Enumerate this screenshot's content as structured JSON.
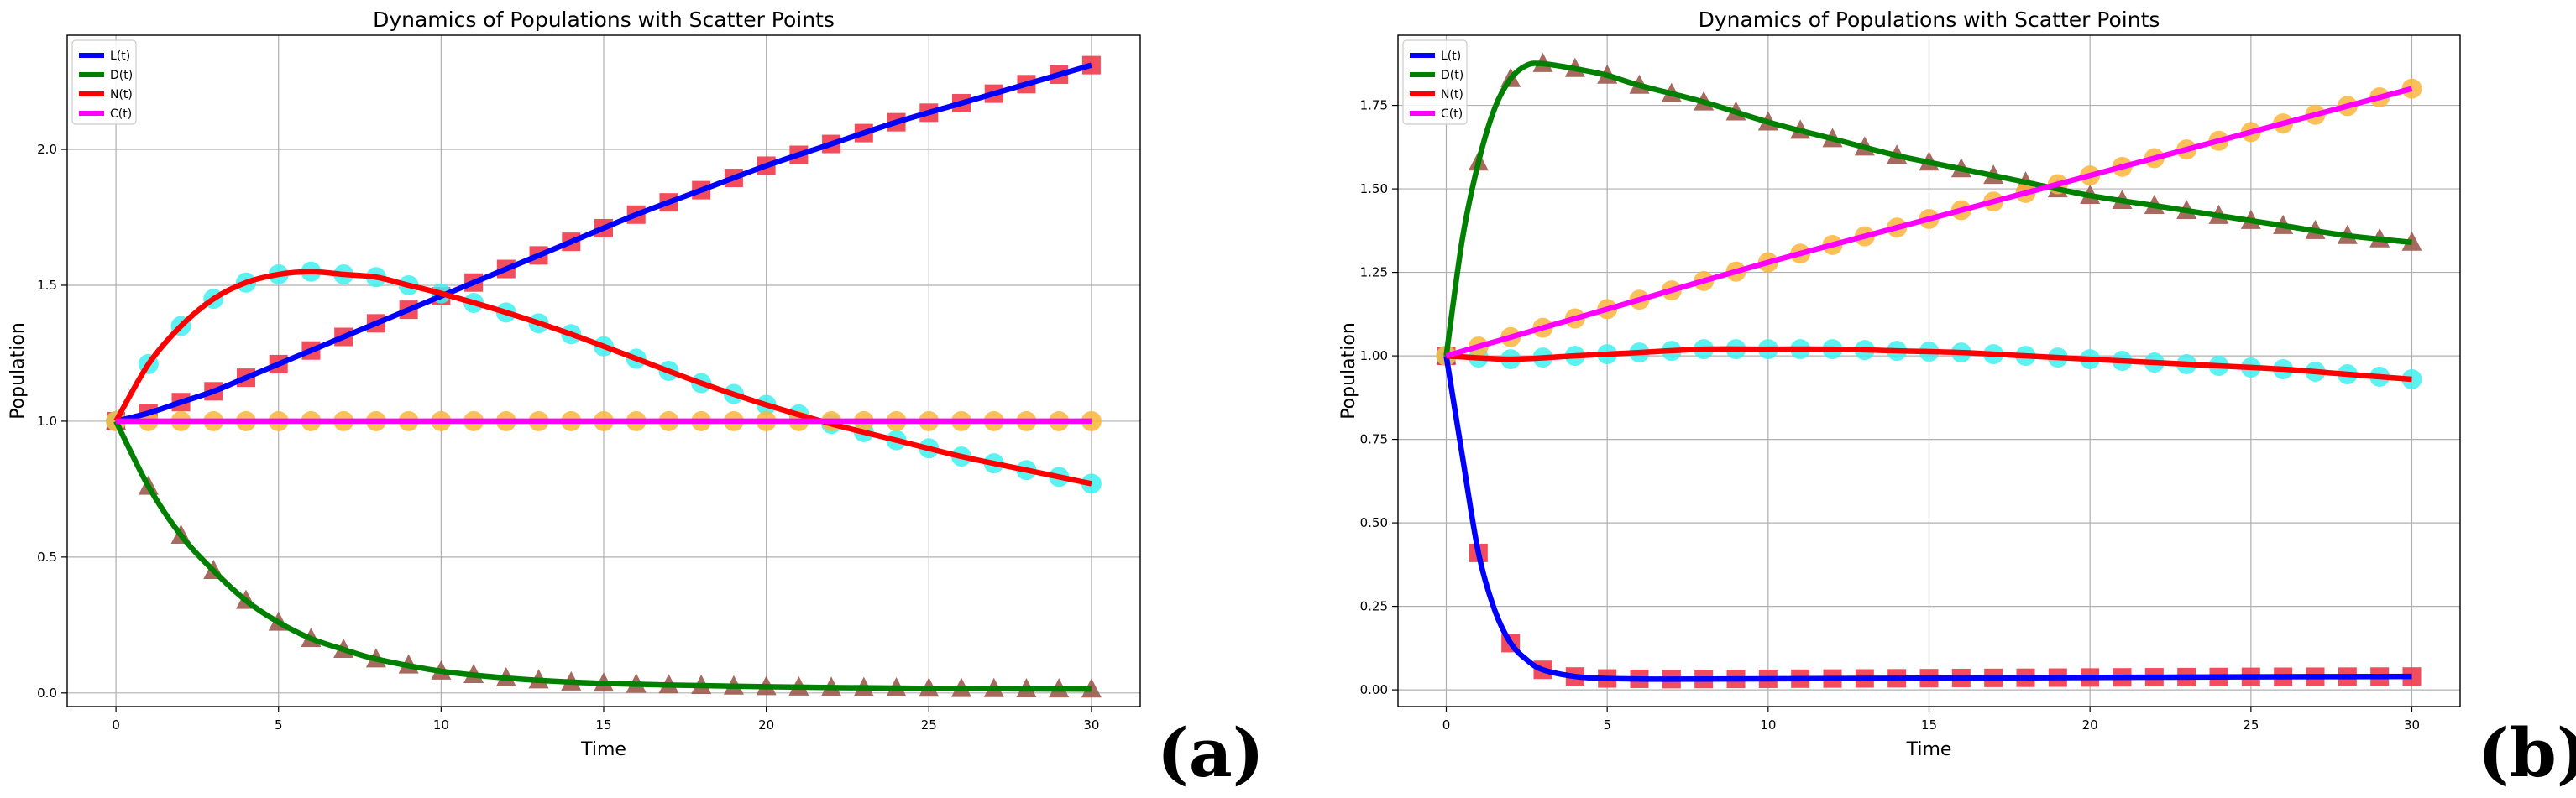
{
  "chart_data": [
    {
      "type": "line",
      "panel_label": "(a)",
      "title": "Dynamics of Populations with Scatter Points",
      "xlabel": "Time",
      "ylabel": "Population",
      "xlim": [
        -1.5,
        31.5
      ],
      "ylim": [
        -0.05,
        2.42
      ],
      "xticks": [
        0,
        5,
        10,
        15,
        20,
        25,
        30
      ],
      "yticks": [
        0.0,
        0.5,
        1.0,
        1.5,
        2.0
      ],
      "ytick_labels": [
        "0.0",
        "0.5",
        "1.0",
        "1.5",
        "2.0"
      ],
      "grid": true,
      "legend_position": "top-left",
      "series": [
        {
          "name": "L(t)",
          "color": "#0000ff",
          "marker": "square",
          "marker_color": "#f03a4a",
          "x": [
            0,
            1,
            2,
            3,
            4,
            5,
            6,
            7,
            8,
            9,
            10,
            12,
            14,
            16,
            18,
            20,
            22,
            24,
            26,
            28,
            30
          ],
          "values": [
            1.0,
            1.03,
            1.07,
            1.11,
            1.16,
            1.21,
            1.26,
            1.31,
            1.36,
            1.41,
            1.46,
            1.56,
            1.66,
            1.76,
            1.85,
            1.94,
            2.02,
            2.1,
            2.17,
            2.24,
            2.31
          ]
        },
        {
          "name": "D(t)",
          "color": "#008000",
          "marker": "triangle",
          "marker_color": "#9c5a4e",
          "x": [
            0,
            1,
            2,
            3,
            4,
            5,
            6,
            7,
            8,
            10,
            12,
            14,
            16,
            18,
            20,
            22,
            24,
            26,
            28,
            30
          ],
          "values": [
            1.0,
            0.76,
            0.58,
            0.45,
            0.34,
            0.26,
            0.2,
            0.16,
            0.125,
            0.08,
            0.055,
            0.04,
            0.032,
            0.027,
            0.023,
            0.02,
            0.018,
            0.016,
            0.015,
            0.014
          ]
        },
        {
          "name": "N(t)",
          "color": "#ff0000",
          "marker": "circle",
          "marker_color": "#3ff0f0",
          "x": [
            0,
            1,
            2,
            3,
            4,
            5,
            6,
            7,
            8,
            9,
            10,
            12,
            14,
            16,
            18,
            20,
            22,
            24,
            26,
            28,
            30
          ],
          "values": [
            1.0,
            1.21,
            1.35,
            1.45,
            1.51,
            1.54,
            1.55,
            1.54,
            1.53,
            1.5,
            1.47,
            1.4,
            1.32,
            1.23,
            1.14,
            1.06,
            0.99,
            0.93,
            0.87,
            0.82,
            0.77
          ]
        },
        {
          "name": "C(t)",
          "color": "#ff00ff",
          "marker": "circle",
          "marker_color": "#fbb53c",
          "x": [
            0,
            5,
            10,
            15,
            20,
            25,
            30
          ],
          "values": [
            1.0,
            1.0,
            1.0,
            1.0,
            1.0,
            1.0,
            1.0
          ]
        }
      ]
    },
    {
      "type": "line",
      "panel_label": "(b)",
      "title": "Dynamics of Populations with Scatter Points",
      "xlabel": "Time",
      "ylabel": "Population",
      "xlim": [
        -1.5,
        31.5
      ],
      "ylim": [
        -0.05,
        1.96
      ],
      "xticks": [
        0,
        5,
        10,
        15,
        20,
        25,
        30
      ],
      "yticks": [
        0.0,
        0.25,
        0.5,
        0.75,
        1.0,
        1.25,
        1.5,
        1.75
      ],
      "ytick_labels": [
        "0.00",
        "0.25",
        "0.50",
        "0.75",
        "1.00",
        "1.25",
        "1.50",
        "1.75"
      ],
      "grid": true,
      "legend_position": "top-left",
      "series": [
        {
          "name": "L(t)",
          "color": "#0000ff",
          "marker": "square",
          "marker_color": "#f03a4a",
          "x": [
            0,
            0.5,
            1,
            1.5,
            2,
            2.5,
            3,
            4,
            5,
            7,
            10,
            15,
            20,
            25,
            30
          ],
          "values": [
            1.0,
            0.7,
            0.41,
            0.24,
            0.14,
            0.09,
            0.06,
            0.04,
            0.034,
            0.032,
            0.033,
            0.035,
            0.037,
            0.039,
            0.04
          ]
        },
        {
          "name": "D(t)",
          "color": "#008000",
          "marker": "triangle",
          "marker_color": "#9c5a4e",
          "x": [
            0,
            0.5,
            1,
            1.5,
            2,
            2.5,
            3,
            4,
            5,
            6,
            8,
            10,
            12,
            14,
            16,
            18,
            20,
            22,
            24,
            26,
            28,
            30
          ],
          "values": [
            1.0,
            1.35,
            1.58,
            1.74,
            1.83,
            1.87,
            1.875,
            1.86,
            1.84,
            1.81,
            1.76,
            1.7,
            1.65,
            1.6,
            1.56,
            1.52,
            1.48,
            1.45,
            1.42,
            1.39,
            1.36,
            1.34
          ]
        },
        {
          "name": "N(t)",
          "color": "#ff0000",
          "marker": "circle",
          "marker_color": "#3ff0f0",
          "x": [
            0,
            2,
            4,
            6,
            8,
            10,
            12,
            14,
            16,
            18,
            20,
            22,
            24,
            26,
            28,
            30
          ],
          "values": [
            1.0,
            0.99,
            1.0,
            1.01,
            1.02,
            1.02,
            1.02,
            1.015,
            1.01,
            1.0,
            0.99,
            0.98,
            0.97,
            0.96,
            0.945,
            0.93
          ]
        },
        {
          "name": "C(t)",
          "color": "#ff00ff",
          "marker": "circle",
          "marker_color": "#fbb53c",
          "x": [
            0,
            5,
            10,
            15,
            20,
            25,
            30
          ],
          "values": [
            1.0,
            1.14,
            1.28,
            1.41,
            1.54,
            1.67,
            1.8
          ]
        }
      ]
    }
  ]
}
